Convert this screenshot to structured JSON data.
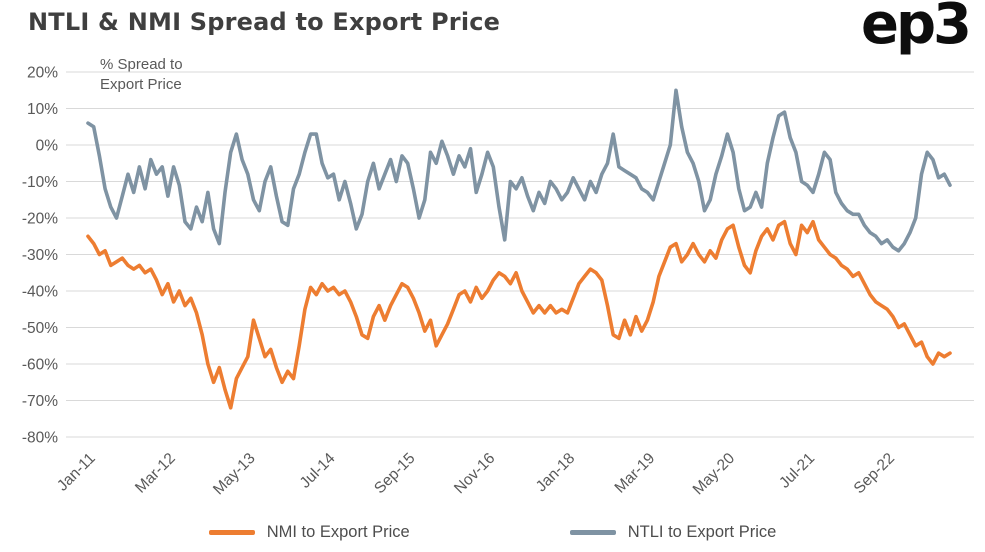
{
  "page": {
    "background": "#ffffff"
  },
  "header": {
    "title": "NTLI & NMI Spread to Export Price",
    "logo_text": "ep3"
  },
  "chart_data": {
    "type": "line",
    "title": "NTLI & NMI Spread to Export Price",
    "annotation": "% Spread to\nExport Price",
    "x_frequency": "monthly",
    "x_tick_labels": [
      "Jan-11",
      "Mar-12",
      "May-13",
      "Jul-14",
      "Sep-15",
      "Nov-16",
      "Jan-18",
      "Mar-19",
      "May-20",
      "Jul-21",
      "Sep-22"
    ],
    "x_tick_indices": [
      0,
      14,
      28,
      42,
      56,
      70,
      84,
      98,
      112,
      126,
      140
    ],
    "ylim": [
      -80,
      20
    ],
    "ytick_step": 10,
    "ytick_format": "percent",
    "grid": "horizontal",
    "legend_position": "bottom",
    "colors": {
      "grid": "#d9d9d9",
      "axis_text": "#595959",
      "title_text": "#3f3f3f",
      "nmi_line": "#ED7D31",
      "ntli_line": "#7F93A3"
    },
    "series": [
      {
        "name": "NMI to Export Price",
        "color": "#ED7D31",
        "values": [
          -25,
          -27,
          -30,
          -29,
          -33,
          -32,
          -31,
          -33,
          -34,
          -33,
          -35,
          -34,
          -37,
          -41,
          -38,
          -43,
          -40,
          -44,
          -42,
          -46,
          -52,
          -60,
          -65,
          -61,
          -67,
          -72,
          -64,
          -61,
          -58,
          -48,
          -53,
          -58,
          -56,
          -61,
          -65,
          -62,
          -64,
          -55,
          -45,
          -39,
          -41,
          -38,
          -40,
          -39,
          -41,
          -40,
          -43,
          -47,
          -52,
          -53,
          -47,
          -44,
          -48,
          -44,
          -41,
          -38,
          -39,
          -42,
          -46,
          -51,
          -48,
          -55,
          -52,
          -49,
          -45,
          -41,
          -40,
          -43,
          -39,
          -42,
          -40,
          -37,
          -35,
          -36,
          -38,
          -35,
          -40,
          -43,
          -46,
          -44,
          -46,
          -44,
          -46,
          -45,
          -46,
          -42,
          -38,
          -36,
          -34,
          -35,
          -37,
          -44,
          -52,
          -53,
          -48,
          -52,
          -47,
          -51,
          -48,
          -43,
          -36,
          -32,
          -28,
          -27,
          -32,
          -30,
          -27,
          -30,
          -32,
          -29,
          -31,
          -26,
          -23,
          -22,
          -28,
          -33,
          -35,
          -29,
          -25,
          -23,
          -26,
          -22,
          -21,
          -27,
          -30,
          -22,
          -24,
          -21,
          -26,
          -28,
          -30,
          -31,
          -33,
          -34,
          -36,
          -35,
          -38,
          -41,
          -43,
          -44,
          -45,
          -47,
          -50,
          -49,
          -52,
          -55,
          -54,
          -58,
          -60,
          -57,
          -58,
          -57
        ]
      },
      {
        "name": "NTLI to Export Price",
        "color": "#7F93A3",
        "values": [
          6,
          5,
          -3,
          -12,
          -17,
          -20,
          -14,
          -8,
          -13,
          -6,
          -12,
          -4,
          -8,
          -6,
          -14,
          -6,
          -11,
          -21,
          -23,
          -17,
          -21,
          -13,
          -23,
          -27,
          -13,
          -2,
          3,
          -4,
          -8,
          -15,
          -18,
          -10,
          -6,
          -14,
          -21,
          -22,
          -12,
          -8,
          -2,
          3,
          3,
          -5,
          -9,
          -8,
          -15,
          -10,
          -16,
          -23,
          -19,
          -10,
          -5,
          -12,
          -8,
          -4,
          -10,
          -3,
          -5,
          -12,
          -20,
          -15,
          -2,
          -5,
          1,
          -3,
          -8,
          -3,
          -6,
          -1,
          -13,
          -8,
          -2,
          -6,
          -17,
          -26,
          -10,
          -12,
          -9,
          -14,
          -18,
          -13,
          -16,
          -10,
          -12,
          -15,
          -13,
          -9,
          -12,
          -15,
          -10,
          -13,
          -8,
          -5,
          3,
          -6,
          -7,
          -8,
          -9,
          -12,
          -13,
          -15,
          -10,
          -5,
          0,
          15,
          5,
          -2,
          -5,
          -10,
          -18,
          -15,
          -8,
          -3,
          3,
          -2,
          -12,
          -18,
          -17,
          -13,
          -17,
          -5,
          2,
          8,
          9,
          2,
          -2,
          -10,
          -11,
          -13,
          -8,
          -2,
          -4,
          -13,
          -16,
          -18,
          -19,
          -19,
          -22,
          -24,
          -25,
          -27,
          -26,
          -28,
          -29,
          -27,
          -24,
          -20,
          -8,
          -2,
          -4,
          -9,
          -8,
          -11
        ]
      }
    ]
  }
}
